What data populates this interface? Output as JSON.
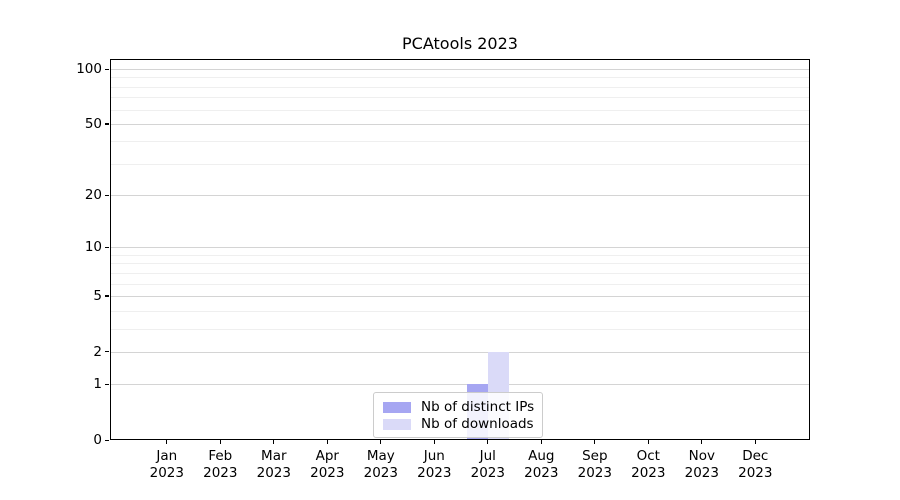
{
  "chart_data": {
    "type": "bar",
    "title": "PCAtools 2023",
    "categories": [
      "Jan",
      "Feb",
      "Mar",
      "Apr",
      "May",
      "Jun",
      "Jul",
      "Aug",
      "Sep",
      "Oct",
      "Nov",
      "Dec"
    ],
    "category_year": "2023",
    "series": [
      {
        "name": "Nb of distinct IPs",
        "color": "#a6a6f2",
        "values": [
          0,
          0,
          0,
          0,
          0,
          0,
          1,
          0,
          0,
          0,
          0,
          0
        ]
      },
      {
        "name": "Nb of downloads",
        "color": "#dadaf8",
        "values": [
          0,
          0,
          0,
          0,
          0,
          0,
          2,
          0,
          0,
          0,
          0,
          0
        ]
      }
    ],
    "xlabel": "",
    "ylabel": "",
    "yscale": "log1p",
    "ylim": [
      0,
      113
    ],
    "y_major_ticks": [
      0,
      1,
      2,
      5,
      10,
      20,
      50,
      100
    ],
    "y_minor_ticks": [
      3,
      4,
      6,
      7,
      8,
      9,
      30,
      40,
      60,
      70,
      80,
      90
    ],
    "grid": "horizontal",
    "legend_position": "lower center"
  },
  "colors": {
    "axis": "#000000",
    "major_grid": "#d4d4d4",
    "minor_grid": "#efefef",
    "background": "#ffffff"
  }
}
